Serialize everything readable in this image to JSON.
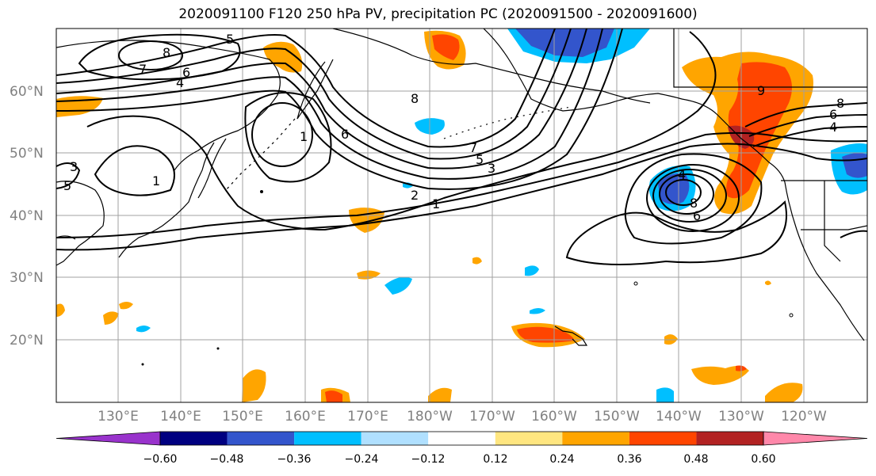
{
  "title": "2020091100 F120 250 hPa PV, precipitation PC (2020091500 - 2020091600)",
  "lat_labels": [
    "60°N",
    "50°N",
    "40°N",
    "30°N",
    "20°N"
  ],
  "lon_labels": [
    "130°E",
    "140°E",
    "150°E",
    "160°E",
    "170°E",
    "180°W",
    "170°W",
    "160°W",
    "150°W",
    "140°W",
    "130°W",
    "120°W"
  ],
  "colorbar": {
    "ticks": [
      "−0.60",
      "−0.48",
      "−0.36",
      "−0.24",
      "−0.12",
      "0.12",
      "0.24",
      "0.36",
      "0.48",
      "0.60"
    ],
    "colors": [
      "#9933cc",
      "#000080",
      "#3355cc",
      "#00bfff",
      "#b0e0ff",
      "#ffffff",
      "#ffe680",
      "#ffa500",
      "#ff4500",
      "#b22222",
      "#ff88aa"
    ]
  },
  "contour_labels": [
    "5",
    "8",
    "7",
    "6",
    "4",
    "8",
    "1",
    "6",
    "7",
    "5",
    "3",
    "2",
    "1",
    "3",
    "5",
    "1",
    "8",
    "6",
    "4",
    "4",
    "8",
    "6",
    "9"
  ]
}
